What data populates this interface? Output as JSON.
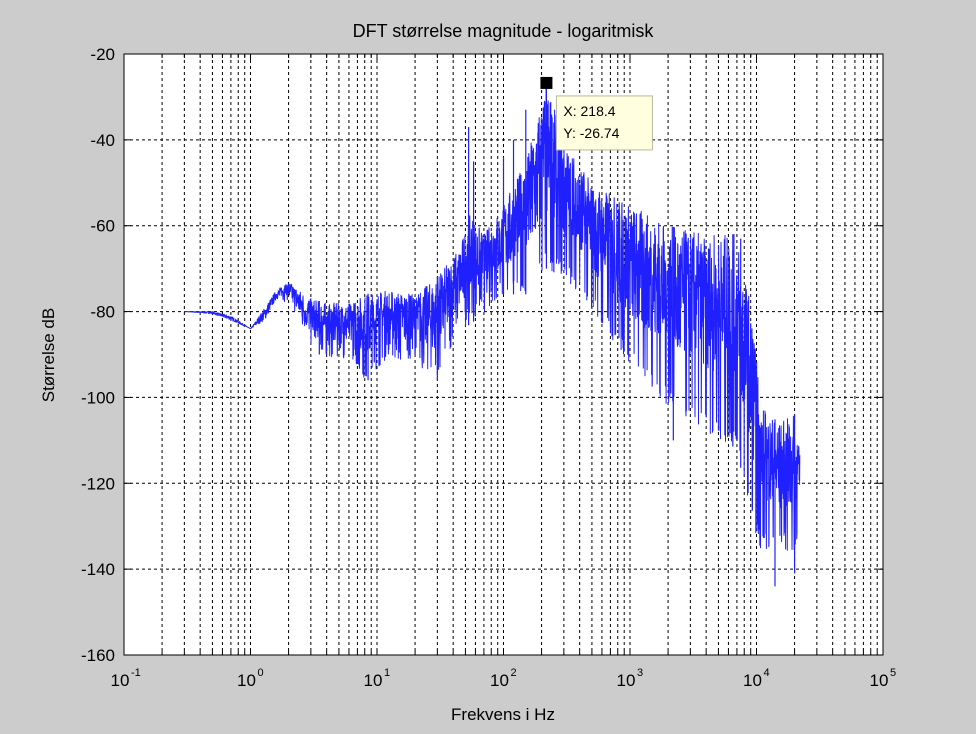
{
  "chart_data": {
    "type": "line",
    "title": "DFT størrelse magnitude - logaritmisk",
    "xlabel": "Frekvens i Hz",
    "ylabel": "Størrelse dB",
    "xscale": "log",
    "xlim": [
      0.1,
      100000
    ],
    "ylim": [
      -160,
      -20
    ],
    "grid": "on",
    "x_ticks": [
      {
        "base": "10",
        "exp": "-1",
        "value": 0.1
      },
      {
        "base": "10",
        "exp": "0",
        "value": 1
      },
      {
        "base": "10",
        "exp": "1",
        "value": 10
      },
      {
        "base": "10",
        "exp": "2",
        "value": 100
      },
      {
        "base": "10",
        "exp": "3",
        "value": 1000
      },
      {
        "base": "10",
        "exp": "4",
        "value": 10000
      },
      {
        "base": "10",
        "exp": "5",
        "value": 100000
      }
    ],
    "y_ticks": [
      {
        "label": "-20",
        "value": -20
      },
      {
        "label": "-40",
        "value": -40
      },
      {
        "label": "-60",
        "value": -60
      },
      {
        "label": "-80",
        "value": -80
      },
      {
        "label": "-100",
        "value": -100
      },
      {
        "label": "-120",
        "value": -120
      },
      {
        "label": "-140",
        "value": -140
      },
      {
        "label": "-160",
        "value": -160
      }
    ],
    "series": [
      {
        "color": "#2020ff",
        "envelope": [
          {
            "x": 0.3,
            "upper": -80,
            "lower": -80
          },
          {
            "x": 0.5,
            "upper": -80,
            "lower": -80.5
          },
          {
            "x": 0.7,
            "upper": -81,
            "lower": -82
          },
          {
            "x": 1.0,
            "upper": -84,
            "lower": -84
          },
          {
            "x": 1.3,
            "upper": -79,
            "lower": -82
          },
          {
            "x": 1.6,
            "upper": -75,
            "lower": -77
          },
          {
            "x": 2.0,
            "upper": -73,
            "lower": -78
          },
          {
            "x": 3,
            "upper": -77,
            "lower": -88
          },
          {
            "x": 4,
            "upper": -78,
            "lower": -91
          },
          {
            "x": 6,
            "upper": -78,
            "lower": -91
          },
          {
            "x": 8,
            "upper": -76,
            "lower": -96
          },
          {
            "x": 12,
            "upper": -75,
            "lower": -91
          },
          {
            "x": 20,
            "upper": -76,
            "lower": -92
          },
          {
            "x": 30,
            "upper": -72,
            "lower": -96
          },
          {
            "x": 45,
            "upper": -65,
            "lower": -84
          },
          {
            "x": 55,
            "upper": -57,
            "lower": -83
          },
          {
            "x": 70,
            "upper": -62,
            "lower": -80
          },
          {
            "x": 100,
            "upper": -55,
            "lower": -76
          },
          {
            "x": 150,
            "upper": -45,
            "lower": -76
          },
          {
            "x": 218.4,
            "upper": -26.74,
            "lower": -70
          },
          {
            "x": 300,
            "upper": -40,
            "lower": -72
          },
          {
            "x": 500,
            "upper": -50,
            "lower": -80
          },
          {
            "x": 1000,
            "upper": -55,
            "lower": -92
          },
          {
            "x": 2000,
            "upper": -60,
            "lower": -102
          },
          {
            "x": 4000,
            "upper": -62,
            "lower": -108
          },
          {
            "x": 7000,
            "upper": -62,
            "lower": -112
          },
          {
            "x": 9000,
            "upper": -78,
            "lower": -128
          },
          {
            "x": 11000,
            "upper": -102,
            "lower": -136
          },
          {
            "x": 15000,
            "upper": -106,
            "lower": -134
          },
          {
            "x": 20000,
            "upper": -104,
            "lower": -138
          },
          {
            "x": 22000,
            "upper": -113,
            "lower": -127
          }
        ],
        "spikes": [
          {
            "x": 53,
            "y": -37
          },
          {
            "x": 58,
            "y": -45
          },
          {
            "x": 100,
            "y": -44
          },
          {
            "x": 120,
            "y": -40
          },
          {
            "x": 150,
            "y": -33
          },
          {
            "x": 218.4,
            "y": -26.74
          },
          {
            "x": 250,
            "y": -36
          },
          {
            "x": 6500,
            "y": -62
          },
          {
            "x": 7500,
            "y": -63
          }
        ],
        "dips": [
          {
            "x": 3.5,
            "y": -90
          },
          {
            "x": 8.5,
            "y": -96
          },
          {
            "x": 30,
            "y": -96
          },
          {
            "x": 2200,
            "y": -110
          },
          {
            "x": 14000,
            "y": -144
          },
          {
            "x": 20000,
            "y": -141
          }
        ]
      }
    ],
    "datatip": {
      "x": 218.4,
      "y": -26.74,
      "x_text": "X: 218.4",
      "y_text": "Y: -26.74"
    }
  }
}
